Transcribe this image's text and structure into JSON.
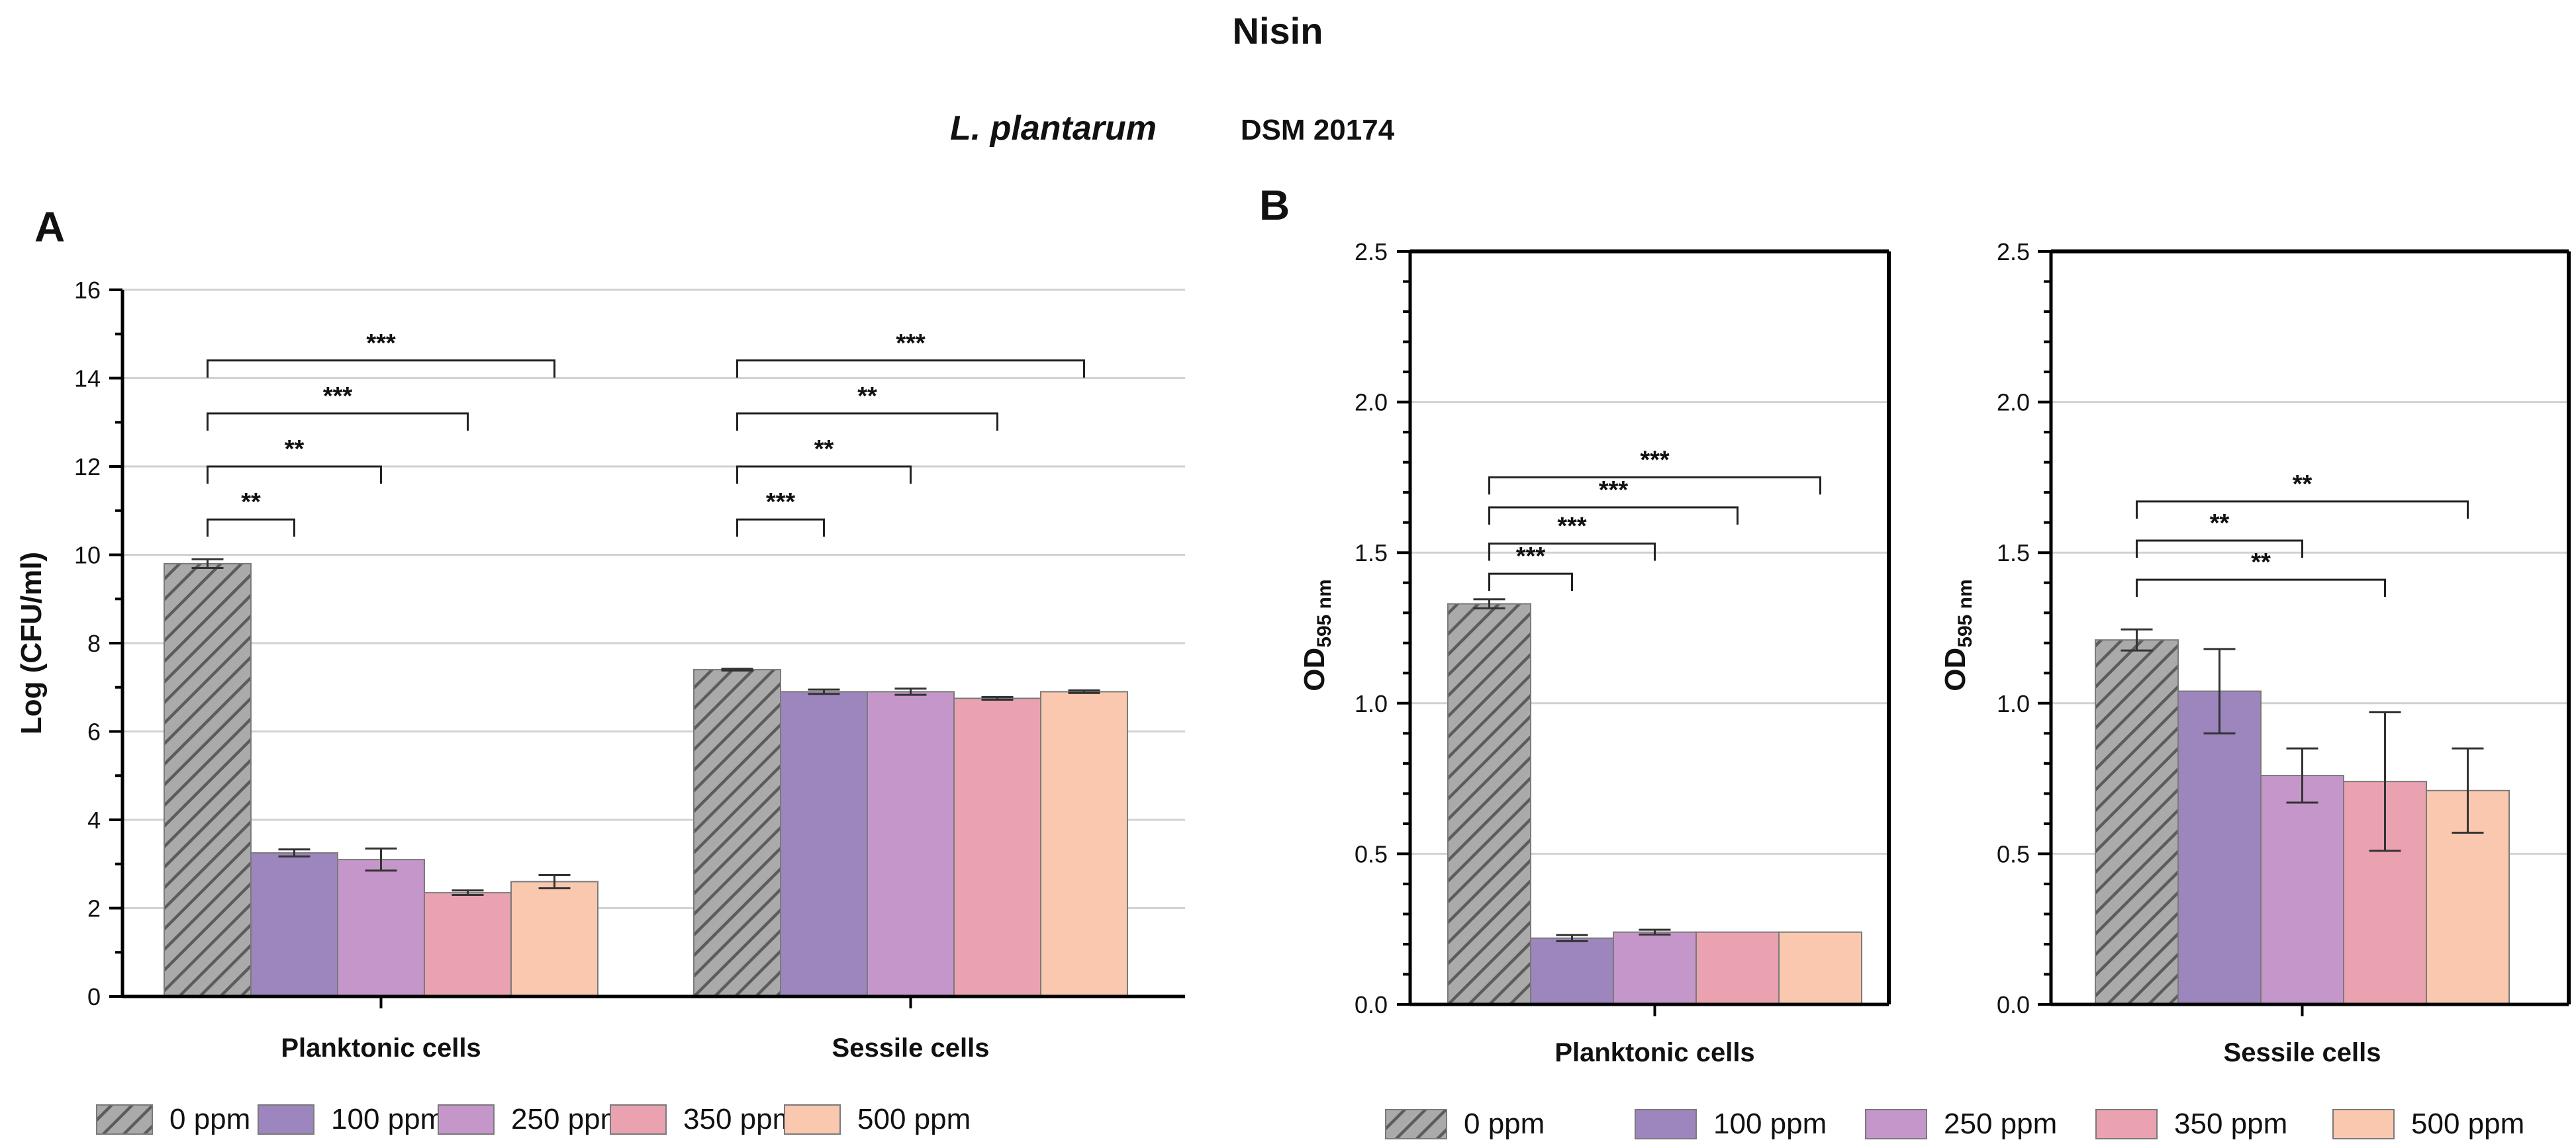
{
  "header": {
    "title": "Nisin",
    "subtitle_species": "L. plantarum",
    "subtitle_strain": "DSM 20174"
  },
  "colors": {
    "0 ppm": "#a9aaa9",
    "100 ppm": "#9c86bd",
    "250 ppm": "#c596c9",
    "350 ppm": "#eaa2b1",
    "500 ppm": "#f9c8af"
  },
  "legend": [
    "0 ppm",
    "100 ppm",
    "250 ppm",
    "350 ppm",
    "500 ppm"
  ],
  "chart_data": [
    {
      "panel": "A",
      "type": "bar",
      "ylabel": "Log (CFU/ml)",
      "ylim": [
        0,
        16
      ],
      "yticks": [
        0,
        2,
        4,
        6,
        8,
        10,
        12,
        14,
        16
      ],
      "grid": true,
      "categories": [
        "Planktonic cells",
        "Sessile cells"
      ],
      "series": [
        {
          "name": "0 ppm",
          "values": [
            9.8,
            7.4
          ],
          "errors": [
            0.1,
            0.02
          ]
        },
        {
          "name": "100 ppm",
          "values": [
            3.25,
            6.9
          ],
          "errors": [
            0.08,
            0.05
          ]
        },
        {
          "name": "250 ppm",
          "values": [
            3.1,
            6.9
          ],
          "errors": [
            0.25,
            0.07
          ]
        },
        {
          "name": "350 ppm",
          "values": [
            2.35,
            6.75
          ],
          "errors": [
            0.05,
            0.03
          ]
        },
        {
          "name": "500 ppm",
          "values": [
            2.6,
            6.9
          ],
          "errors": [
            0.15,
            0.03
          ]
        }
      ],
      "significance": [
        {
          "category": "Planktonic cells",
          "from": "0 ppm",
          "to": "100 ppm",
          "level": 10.8,
          "label": "**"
        },
        {
          "category": "Planktonic cells",
          "from": "0 ppm",
          "to": "250 ppm",
          "level": 12.0,
          "label": "**"
        },
        {
          "category": "Planktonic cells",
          "from": "0 ppm",
          "to": "350 ppm",
          "level": 13.2,
          "label": "***"
        },
        {
          "category": "Planktonic cells",
          "from": "0 ppm",
          "to": "500 ppm",
          "level": 14.4,
          "label": "***"
        },
        {
          "category": "Sessile cells",
          "from": "0 ppm",
          "to": "100 ppm",
          "level": 10.8,
          "label": "***"
        },
        {
          "category": "Sessile cells",
          "from": "0 ppm",
          "to": "250 ppm",
          "level": 12.0,
          "label": "**"
        },
        {
          "category": "Sessile cells",
          "from": "0 ppm",
          "to": "350 ppm",
          "level": 13.2,
          "label": "**"
        },
        {
          "category": "Sessile cells",
          "from": "0 ppm",
          "to": "500 ppm",
          "level": 14.4,
          "label": "***"
        }
      ]
    },
    {
      "panel": "B",
      "type": "bar",
      "ylabel": "OD",
      "ylabel_subscript": "595 nm",
      "ylim": [
        0,
        2.5
      ],
      "yticks": [
        0.0,
        0.5,
        1.0,
        1.5,
        2.0,
        2.5
      ],
      "grid": true,
      "categories": [
        "Planktonic cells"
      ],
      "series": [
        {
          "name": "0 ppm",
          "values": [
            1.33
          ],
          "errors": [
            0.015
          ]
        },
        {
          "name": "100 ppm",
          "values": [
            0.22
          ],
          "errors": [
            0.01
          ]
        },
        {
          "name": "250 ppm",
          "values": [
            0.24
          ],
          "errors": [
            0.008
          ]
        },
        {
          "name": "350 ppm",
          "values": [
            0.24
          ],
          "errors": [
            0.0
          ]
        },
        {
          "name": "500 ppm",
          "values": [
            0.24
          ],
          "errors": [
            0.0
          ]
        }
      ],
      "significance": [
        {
          "category": "Planktonic cells",
          "from": "0 ppm",
          "to": "100 ppm",
          "level": 1.43,
          "label": "***"
        },
        {
          "category": "Planktonic cells",
          "from": "0 ppm",
          "to": "250 ppm",
          "level": 1.53,
          "label": "***"
        },
        {
          "category": "Planktonic cells",
          "from": "0 ppm",
          "to": "350 ppm",
          "level": 1.65,
          "label": "***"
        },
        {
          "category": "Planktonic cells",
          "from": "0 ppm",
          "to": "500 ppm",
          "level": 1.75,
          "label": "***"
        }
      ]
    },
    {
      "panel": "B2",
      "type": "bar",
      "ylabel": "OD",
      "ylabel_subscript": "595 nm",
      "ylim": [
        0,
        2.5
      ],
      "yticks": [
        0.0,
        0.5,
        1.0,
        1.5,
        2.0,
        2.5
      ],
      "grid": true,
      "categories": [
        "Sessile cells"
      ],
      "series": [
        {
          "name": "0 ppm",
          "values": [
            1.21
          ],
          "errors": [
            0.035
          ]
        },
        {
          "name": "100 ppm",
          "values": [
            1.04
          ],
          "errors": [
            0.14
          ]
        },
        {
          "name": "250 ppm",
          "values": [
            0.76
          ],
          "errors": [
            0.09
          ]
        },
        {
          "name": "350 ppm",
          "values": [
            0.74
          ],
          "errors": [
            0.23
          ]
        },
        {
          "name": "500 ppm",
          "values": [
            0.71
          ],
          "errors": [
            0.14
          ]
        }
      ],
      "significance": [
        {
          "category": "Sessile cells",
          "from": "0 ppm",
          "to": "350 ppm",
          "level": 1.41,
          "label": "**"
        },
        {
          "category": "Sessile cells",
          "from": "0 ppm",
          "to": "250 ppm",
          "level": 1.54,
          "label": "**"
        },
        {
          "category": "Sessile cells",
          "from": "0 ppm",
          "to": "500 ppm",
          "level": 1.67,
          "label": "**"
        }
      ]
    }
  ]
}
